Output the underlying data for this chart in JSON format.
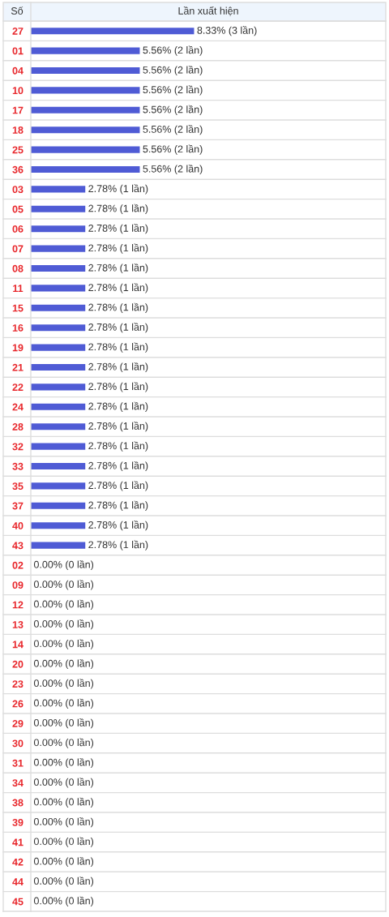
{
  "chart_data": {
    "type": "bar",
    "orientation": "horizontal",
    "title": "Lần xuất hiện",
    "ylabel": "Số",
    "categories": [
      "27",
      "01",
      "04",
      "10",
      "17",
      "18",
      "25",
      "36",
      "03",
      "05",
      "06",
      "07",
      "08",
      "11",
      "15",
      "16",
      "19",
      "21",
      "22",
      "24",
      "28",
      "32",
      "33",
      "35",
      "37",
      "40",
      "43",
      "02",
      "09",
      "12",
      "13",
      "14",
      "20",
      "23",
      "26",
      "29",
      "30",
      "31",
      "34",
      "38",
      "39",
      "41",
      "42",
      "44",
      "45"
    ],
    "values": [
      8.33,
      5.56,
      5.56,
      5.56,
      5.56,
      5.56,
      5.56,
      5.56,
      2.78,
      2.78,
      2.78,
      2.78,
      2.78,
      2.78,
      2.78,
      2.78,
      2.78,
      2.78,
      2.78,
      2.78,
      2.78,
      2.78,
      2.78,
      2.78,
      2.78,
      2.78,
      2.78,
      0.0,
      0.0,
      0.0,
      0.0,
      0.0,
      0.0,
      0.0,
      0.0,
      0.0,
      0.0,
      0.0,
      0.0,
      0.0,
      0.0,
      0.0,
      0.0,
      0.0,
      0.0
    ],
    "value_labels": [
      "8.33% (3 lần)",
      "5.56% (2 lần)",
      "5.56% (2 lần)",
      "5.56% (2 lần)",
      "5.56% (2 lần)",
      "5.56% (2 lần)",
      "5.56% (2 lần)",
      "5.56% (2 lần)",
      "2.78% (1 lần)",
      "2.78% (1 lần)",
      "2.78% (1 lần)",
      "2.78% (1 lần)",
      "2.78% (1 lần)",
      "2.78% (1 lần)",
      "2.78% (1 lần)",
      "2.78% (1 lần)",
      "2.78% (1 lần)",
      "2.78% (1 lần)",
      "2.78% (1 lần)",
      "2.78% (1 lần)",
      "2.78% (1 lần)",
      "2.78% (1 lần)",
      "2.78% (1 lần)",
      "2.78% (1 lần)",
      "2.78% (1 lần)",
      "2.78% (1 lần)",
      "2.78% (1 lần)",
      "0.00% (0 lần)",
      "0.00% (0 lần)",
      "0.00% (0 lần)",
      "0.00% (0 lần)",
      "0.00% (0 lần)",
      "0.00% (0 lần)",
      "0.00% (0 lần)",
      "0.00% (0 lần)",
      "0.00% (0 lần)",
      "0.00% (0 lần)",
      "0.00% (0 lần)",
      "0.00% (0 lần)",
      "0.00% (0 lần)",
      "0.00% (0 lần)",
      "0.00% (0 lần)",
      "0.00% (0 lần)",
      "0.00% (0 lần)",
      "0.00% (0 lần)"
    ],
    "color": "#4f5bd5",
    "grid": "y",
    "tick_labels": "y"
  }
}
